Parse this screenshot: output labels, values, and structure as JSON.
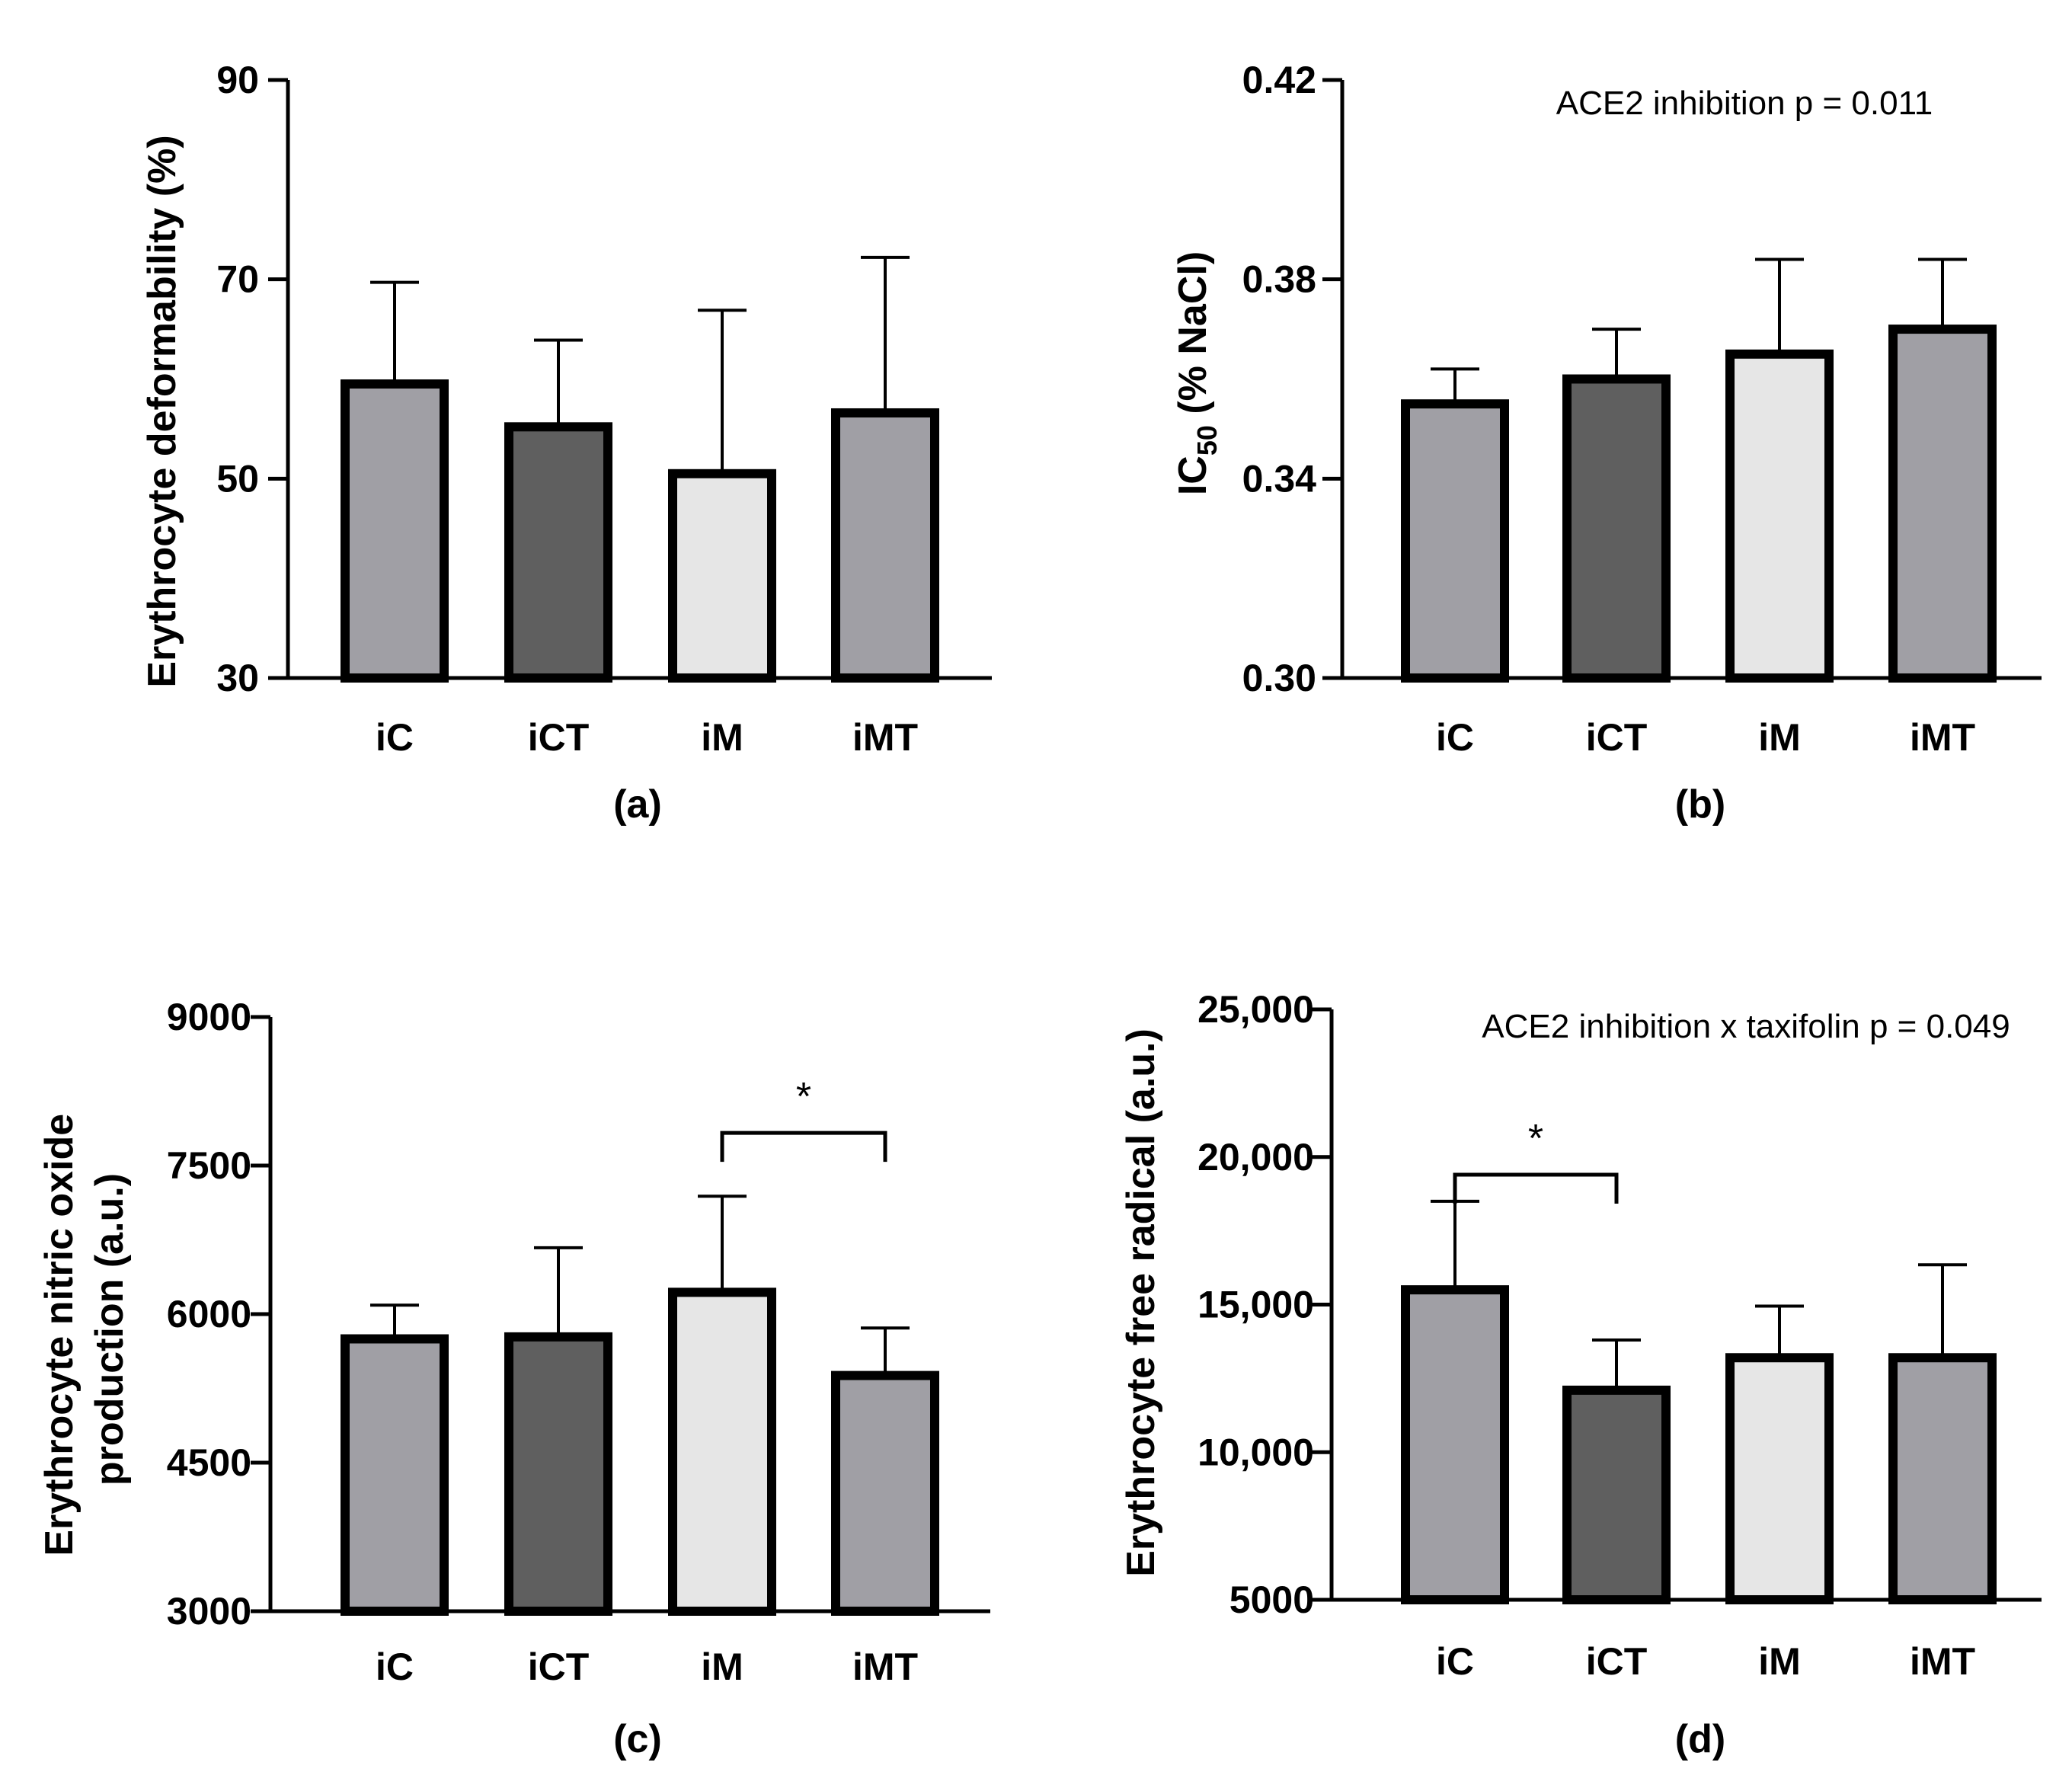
{
  "chart_data": [
    {
      "id": "a",
      "type": "bar",
      "panel_label": "(a)",
      "categories": [
        "iC",
        "iCT",
        "iM",
        "iMT"
      ],
      "values": [
        59.5,
        55.2,
        50.5,
        56.6
      ],
      "errors": [
        10.2,
        8.7,
        16.4,
        15.6
      ],
      "bar_colors": [
        "#a09fa5",
        "#5f5f5f",
        "#e6e6e6",
        "#a09fa5"
      ],
      "ylabel": "Erythrocyte deformability  (%)",
      "ylim": [
        30,
        90
      ],
      "yticks": [
        30,
        50,
        70,
        90
      ],
      "ytick_labels": [
        "30",
        "50",
        "70",
        "90"
      ],
      "annotation": "",
      "significance": []
    },
    {
      "id": "b",
      "type": "bar",
      "panel_label": "(b)",
      "categories": [
        "iC",
        "iCT",
        "iM",
        "iMT"
      ],
      "values": [
        0.355,
        0.36,
        0.365,
        0.37
      ],
      "errors": [
        0.007,
        0.01,
        0.019,
        0.014
      ],
      "bar_colors": [
        "#a09fa5",
        "#5f5f5f",
        "#e6e6e6",
        "#a09fa5"
      ],
      "ylabel_main": "IC",
      "ylabel_sub": "50",
      "ylabel_rest": " (% NaCl)",
      "ylim": [
        0.3,
        0.42
      ],
      "yticks": [
        0.3,
        0.34,
        0.38,
        0.42
      ],
      "ytick_labels": [
        "0.30",
        "0.34",
        "0.38",
        "0.42"
      ],
      "annotation": "ACE2 inhibition p = 0.011",
      "significance": []
    },
    {
      "id": "c",
      "type": "bar",
      "panel_label": "(c)",
      "categories": [
        "iC",
        "iCT",
        "iM",
        "iMT"
      ],
      "values": [
        5750,
        5770,
        6220,
        5380
      ],
      "errors": [
        340,
        900,
        970,
        480
      ],
      "bar_colors": [
        "#a09fa5",
        "#5f5f5f",
        "#e6e6e6",
        "#a09fa5"
      ],
      "ylabel_lines": [
        "Erythrocyte nitric oxide",
        "production (a.u.)"
      ],
      "ylim": [
        3000,
        9000
      ],
      "yticks": [
        3000,
        4500,
        6000,
        7500,
        9000
      ],
      "ytick_labels": [
        "3000",
        "4500",
        "6000",
        "7500",
        "9000"
      ],
      "annotation": "",
      "significance": [
        {
          "from": 2,
          "to": 3,
          "y": 7830,
          "label": "*"
        }
      ]
    },
    {
      "id": "d",
      "type": "bar",
      "panel_label": "(d)",
      "categories": [
        "iC",
        "iCT",
        "iM",
        "iMT"
      ],
      "values": [
        15500,
        12100,
        13200,
        13200
      ],
      "errors": [
        3000,
        1700,
        1750,
        3150
      ],
      "bar_colors": [
        "#a09fa5",
        "#5f5f5f",
        "#e6e6e6",
        "#a09fa5"
      ],
      "ylabel": "Erythrocyte free radical (a.u.)",
      "ylim": [
        5000,
        25000
      ],
      "yticks": [
        5000,
        10000,
        15000,
        20000,
        25000
      ],
      "ytick_labels": [
        "5000",
        "10,000",
        "15,000",
        "20,000",
        "25,000"
      ],
      "annotation": "ACE2 inhibition x taxifolin p = 0.049",
      "significance": [
        {
          "from": 0,
          "to": 1,
          "y": 19400,
          "label": "*"
        }
      ]
    }
  ]
}
